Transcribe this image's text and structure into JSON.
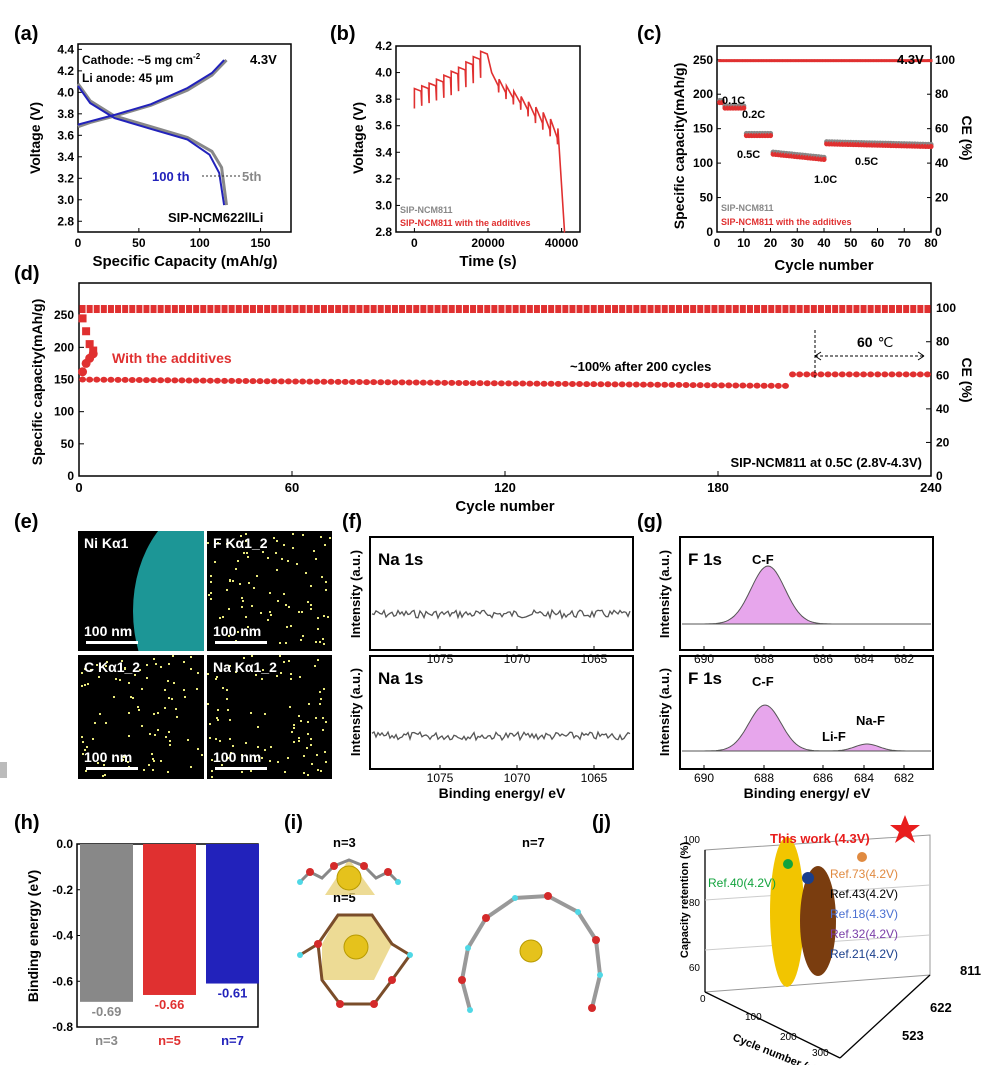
{
  "colors": {
    "red": "#e03030",
    "blue": "#2222bb",
    "gray": "#888888",
    "darkline": "#555555",
    "magenta": "#e7a6ec",
    "cyan": "#23b5b5",
    "yellow": "#f2c500",
    "brown": "#7a3d0f",
    "star": "#e81d1d"
  },
  "panel_a": {
    "label": "(a)",
    "ann_cathode": "Cathode: ~5 mg cm",
    "ann_cathode_sup": "-2",
    "ann_li": "Li anode: 45 μm",
    "ann_voltage": "4.3V",
    "label_100th": "100 th",
    "label_5th": "5th",
    "sample": "SIP-NCM622llLi",
    "chart_data": {
      "type": "line",
      "xlabel": "Specific Capacity (mAh/g)",
      "ylabel": "Voltage (V)",
      "xlim": [
        0,
        175
      ],
      "ylim": [
        2.7,
        4.45
      ],
      "xticks": [
        "0",
        "50",
        "100",
        "150"
      ],
      "yticks": [
        "2.8",
        "3.0",
        "3.2",
        "3.4",
        "3.6",
        "3.8",
        "4.0",
        "4.2",
        "4.4"
      ],
      "series": [
        {
          "name": "5th charge",
          "x": [
            0,
            10,
            30,
            60,
            90,
            110,
            122
          ],
          "y": [
            3.68,
            3.72,
            3.78,
            3.88,
            4.02,
            4.16,
            4.3
          ]
        },
        {
          "name": "5th discharge",
          "x": [
            0,
            10,
            30,
            60,
            90,
            110,
            118,
            122
          ],
          "y": [
            4.08,
            3.92,
            3.78,
            3.68,
            3.58,
            3.45,
            3.3,
            2.95
          ]
        },
        {
          "name": "100th charge",
          "x": [
            0,
            10,
            30,
            60,
            90,
            110,
            120
          ],
          "y": [
            3.7,
            3.73,
            3.79,
            3.89,
            4.04,
            4.18,
            4.3
          ]
        },
        {
          "name": "100th discharge",
          "x": [
            0,
            10,
            30,
            60,
            90,
            108,
            116,
            120
          ],
          "y": [
            4.06,
            3.9,
            3.76,
            3.66,
            3.56,
            3.42,
            3.25,
            2.95
          ]
        }
      ]
    }
  },
  "panel_b": {
    "label": "(b)",
    "legend": [
      "SIP-NCM811",
      "SIP-NCM811 with the additives"
    ],
    "chart_data": {
      "type": "line",
      "xlabel": "Time (s)",
      "ylabel": "Voltage (V)",
      "xlim": [
        -5000,
        45000
      ],
      "ylim": [
        2.8,
        4.2
      ],
      "xticks": [
        "0",
        "20000",
        "40000"
      ],
      "yticks": [
        "2.8",
        "3.0",
        "3.2",
        "3.4",
        "3.6",
        "3.8",
        "4.0",
        "4.2"
      ],
      "charge_pulses": {
        "start_v": [
          3.73,
          3.75,
          3.77,
          3.79,
          3.81,
          3.83,
          3.86,
          3.89,
          3.92,
          3.96
        ],
        "peak_v": [
          3.88,
          3.9,
          3.92,
          3.95,
          3.98,
          4.01,
          4.04,
          4.08,
          4.12,
          4.16
        ]
      },
      "discharge_pulses": {
        "start_v": [
          4.0,
          3.95,
          3.9,
          3.86,
          3.82,
          3.78,
          3.74,
          3.7,
          3.65,
          3.58
        ],
        "low_v": [
          3.85,
          3.8,
          3.76,
          3.72,
          3.67,
          3.62,
          3.57,
          3.52,
          3.46,
          2.8
        ]
      }
    }
  },
  "panel_c": {
    "label": "(c)",
    "voltage": "4.3V",
    "rates": [
      "0.1C",
      "0.2C",
      "0.5C",
      "1.0C",
      "0.5C"
    ],
    "legend": [
      "SIP-NCM811",
      "SIP-NCM811 with the additives"
    ],
    "chart_data": {
      "type": "scatter",
      "xlabel": "Cycle number",
      "ylabel": "Specific capacity(mAh/g)",
      "y2label": "CE (%)",
      "xlim": [
        0,
        80
      ],
      "ylim": [
        0,
        270
      ],
      "y2lim": [
        0,
        108
      ],
      "xticks": [
        "0",
        "10",
        "20",
        "30",
        "40",
        "50",
        "60",
        "70",
        "80"
      ],
      "yticks": [
        "0",
        "50",
        "100",
        "150",
        "200",
        "250"
      ],
      "y2ticks": [
        "0",
        "20",
        "40",
        "60",
        "80",
        "100"
      ],
      "segments": [
        {
          "rate": "0.1C",
          "cycles": [
            1,
            2
          ],
          "capacity": 188
        },
        {
          "rate": "0.2C",
          "cycles": [
            3,
            10
          ],
          "capacity": 180
        },
        {
          "rate": "0.5C",
          "cycles": [
            11,
            20
          ],
          "capacity": 140
        },
        {
          "rate": "1.0C",
          "cycles": [
            21,
            40
          ],
          "capacity": 113
        },
        {
          "rate": "0.5C",
          "cycles": [
            41,
            80
          ],
          "capacity": 128
        }
      ],
      "ce_percent": 99.5
    }
  },
  "panel_d": {
    "label": "(d)",
    "ann_additives": "With the additives",
    "ann_retention": "~100% after 200 cycles",
    "ann_temp": "60",
    "ann_temp_unit": "℃",
    "ann_condition": "SIP-NCM811 at 0.5C (2.8V-4.3V)",
    "chart_data": {
      "type": "scatter",
      "xlabel": "Cycle number",
      "ylabel": "Specific capacity(mAh/g)",
      "y2label": "CE (%)",
      "xlim": [
        0,
        240
      ],
      "ylim": [
        0,
        300
      ],
      "y2lim": [
        0,
        115
      ],
      "xticks": [
        "0",
        "60",
        "120",
        "180",
        "240"
      ],
      "yticks": [
        "0",
        "50",
        "100",
        "150",
        "200",
        "250"
      ],
      "y2ticks": [
        "0",
        "20",
        "40",
        "60",
        "80",
        "100"
      ],
      "capacity_start": 150,
      "capacity_at_200": 140,
      "capacity_60C": 158,
      "ce_percent": 99.5
    }
  },
  "panel_e": {
    "label": "(e)",
    "tiles": [
      {
        "title": "Ni Kα1",
        "scale": "100 nm"
      },
      {
        "title": "F Kα1_2",
        "scale": "100 nm"
      },
      {
        "title": "C Kα1_2",
        "scale": "100 nm"
      },
      {
        "title": "Na Kα1_2",
        "scale": "100 nm"
      }
    ]
  },
  "panel_f": {
    "label": "(f)",
    "title_top": "Na 1s",
    "title_bottom": "Na 1s",
    "ylabel": "Intensity (a.u.)",
    "xlabel": "Binding energy/ eV",
    "xticks": [
      "1075",
      "1070",
      "1065"
    ]
  },
  "panel_g": {
    "label": "(g)",
    "title_top": "F 1s",
    "title_bottom": "F 1s",
    "peak_cf": "C-F",
    "peak_lif": "Li-F",
    "peak_naf": "Na-F",
    "ylabel": "Intensity (a.u.)",
    "xlabel": "Binding energy/ eV",
    "xticks": [
      "690",
      "688",
      "686",
      "684",
      "682"
    ]
  },
  "panel_h": {
    "label": "(h)",
    "chart_data": {
      "type": "bar",
      "categories": [
        "n=3",
        "n=5",
        "n=7"
      ],
      "values": [
        -0.69,
        -0.66,
        -0.61
      ],
      "value_labels": [
        "-0.69",
        "-0.66",
        "-0.61"
      ],
      "ylabel": "Binding energy (eV)",
      "ylim": [
        -0.8,
        0.0
      ],
      "yticks": [
        "0.0",
        "-0.2",
        "-0.4",
        "-0.6",
        "-0.8"
      ]
    }
  },
  "panel_i": {
    "label": "(i)",
    "n3": "n=3",
    "n5": "n=5",
    "n7": "n=7"
  },
  "panel_j": {
    "label": "(j)",
    "this_work": "This work (4.3V)",
    "refs": [
      "Ref.40(4.2V)",
      "Ref.73(4.2V)",
      "Ref.43(4.2V)",
      "Ref.18(4.3V)",
      "Ref.32(4.2V)",
      "Ref.21(4.2V)"
    ],
    "ylabel": "Capacity retention (%)",
    "xlabel": "Cycle number (n)",
    "zlabels": [
      "811",
      "622",
      "523"
    ],
    "yticks": [
      "100",
      "80",
      "60"
    ],
    "xticks": [
      "0",
      "100",
      "200",
      "300"
    ]
  }
}
